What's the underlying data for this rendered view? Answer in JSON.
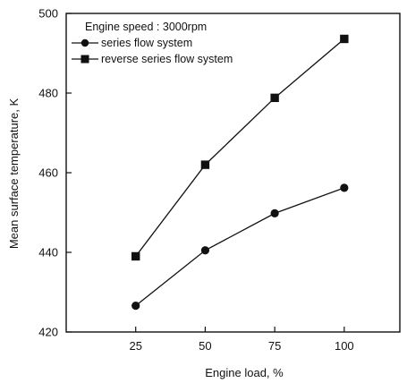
{
  "chart_data": {
    "type": "line",
    "xlabel": "Engine load, %",
    "ylabel": "Mean surface temperature, K",
    "x": [
      25,
      50,
      75,
      100
    ],
    "xticks": [
      "25",
      "50",
      "75",
      "100"
    ],
    "yticks": [
      "420",
      "440",
      "460",
      "480",
      "500"
    ],
    "xlim": [
      0,
      120
    ],
    "ylim": [
      420,
      500
    ],
    "legend_title": "Engine speed : 3000rpm",
    "legend_position": "top-left",
    "grid": false,
    "series": [
      {
        "name": "series flow system",
        "marker": "circle",
        "values": [
          426.6,
          440.5,
          449.8,
          456.2
        ]
      },
      {
        "name": "reverse series flow system",
        "marker": "square",
        "values": [
          439.0,
          462.0,
          478.8,
          493.6
        ]
      }
    ]
  }
}
